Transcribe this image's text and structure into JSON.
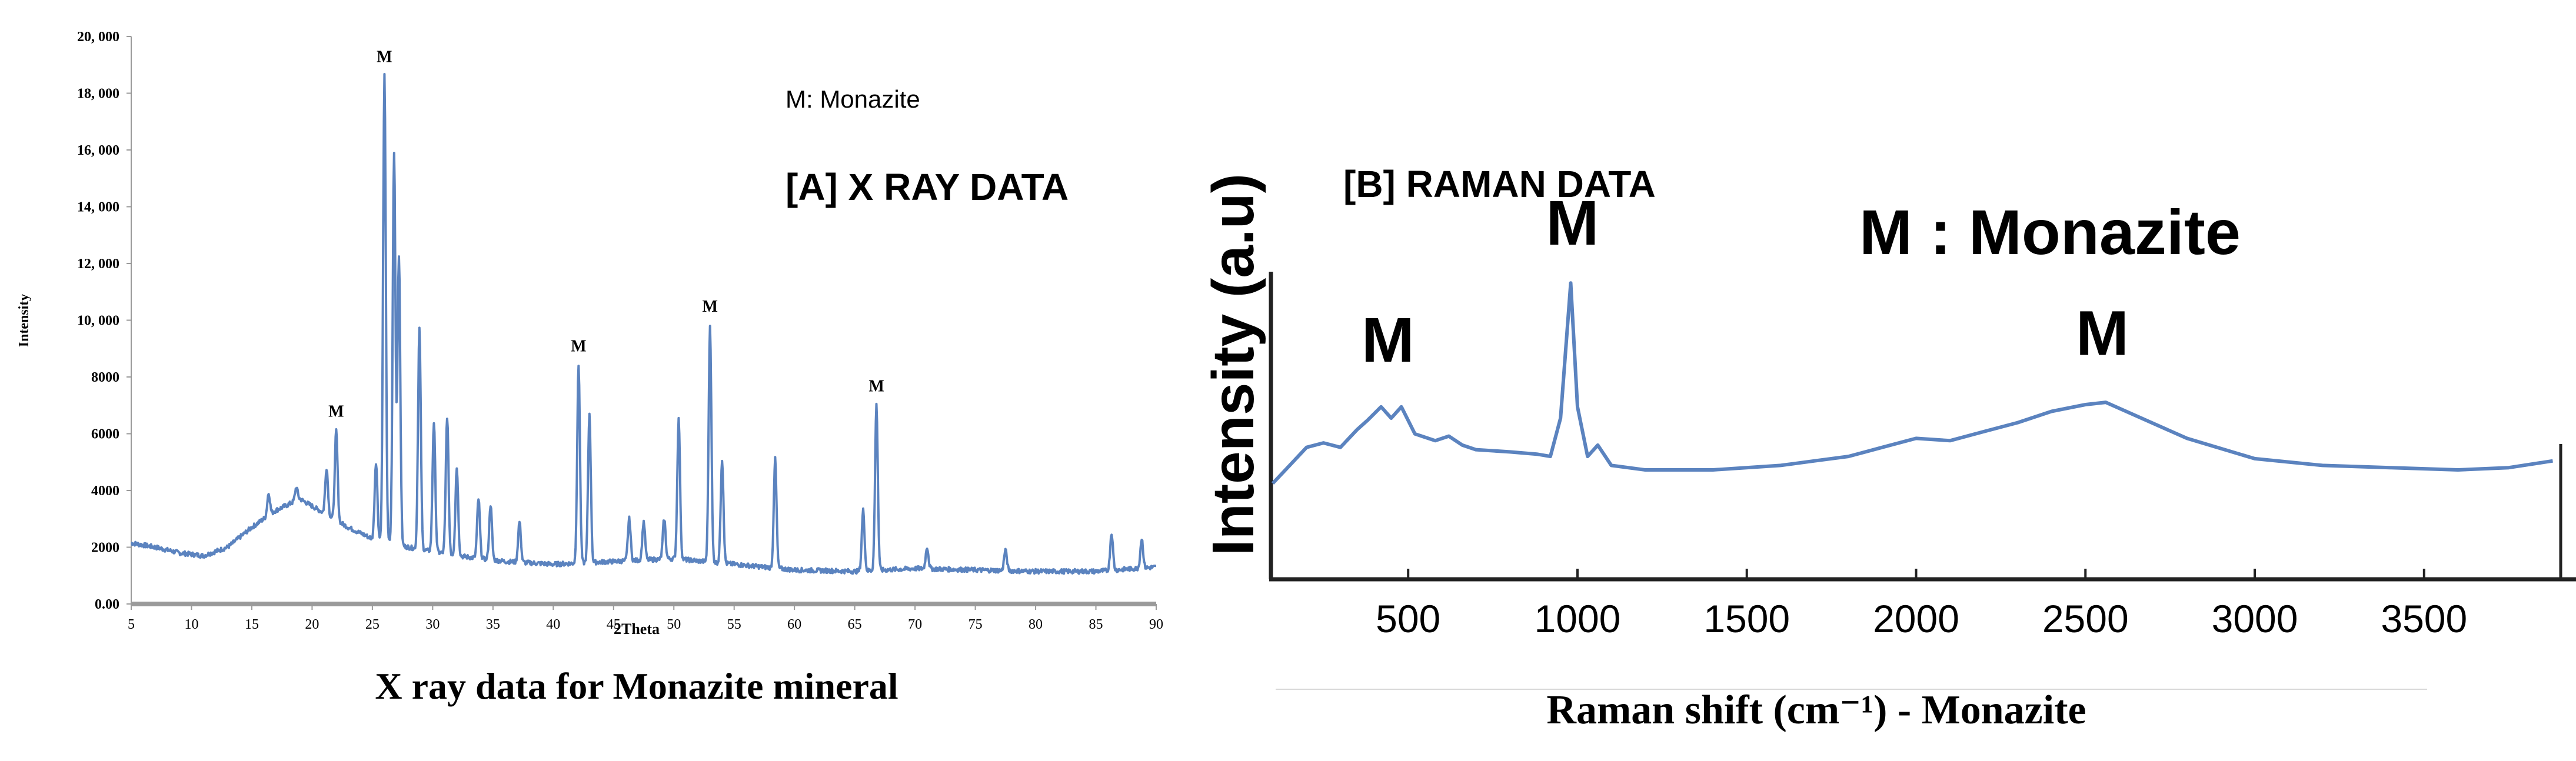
{
  "chart_data": [
    {
      "panel_label": "[A] X RAY DATA",
      "legend_note": "M: Monazite",
      "caption": "X ray data for Monazite mineral",
      "type": "line",
      "xlabel": "2Theta",
      "ylabel": "Intensity",
      "xlim": [
        5,
        90
      ],
      "ylim": [
        0,
        20000
      ],
      "x_ticks": [
        5,
        10,
        15,
        20,
        25,
        30,
        35,
        40,
        45,
        50,
        55,
        60,
        65,
        70,
        75,
        80,
        85,
        90
      ],
      "x_tick_labels": [
        "5",
        "10",
        "15",
        "20",
        "25",
        "30",
        "35",
        "40",
        "45",
        "50",
        "55",
        "60",
        "65",
        "70",
        "75",
        "80",
        "85",
        "90"
      ],
      "y_ticks": [
        0,
        2000,
        4000,
        6000,
        8000,
        10000,
        12000,
        14000,
        16000,
        18000,
        20000
      ],
      "y_tick_labels": [
        "0.00",
        "2000",
        "4000",
        "6000",
        "8000",
        "10, 000",
        "12, 000",
        "14, 000",
        "16, 000",
        "18, 000",
        "20, 000"
      ],
      "line_color": "#5b83bf",
      "baseline": [
        [
          5,
          2150
        ],
        [
          7,
          2000
        ],
        [
          9,
          1800
        ],
        [
          11,
          1700
        ],
        [
          13,
          2000
        ],
        [
          15,
          2700
        ],
        [
          17,
          3300
        ],
        [
          19,
          3700
        ],
        [
          21,
          3200
        ],
        [
          23,
          2700
        ],
        [
          25,
          2300
        ],
        [
          28,
          2000
        ],
        [
          32,
          1700
        ],
        [
          36,
          1500
        ],
        [
          40,
          1400
        ],
        [
          45,
          1500
        ],
        [
          50,
          1600
        ],
        [
          55,
          1400
        ],
        [
          60,
          1200
        ],
        [
          65,
          1150
        ],
        [
          70,
          1250
        ],
        [
          75,
          1200
        ],
        [
          80,
          1150
        ],
        [
          85,
          1150
        ],
        [
          90,
          1300
        ]
      ],
      "peaks": [
        [
          16.4,
          3900
        ],
        [
          18.7,
          4100
        ],
        [
          21.2,
          4800
        ],
        [
          22.0,
          6100
        ],
        [
          25.3,
          5000
        ],
        [
          26.0,
          18600
        ],
        [
          26.8,
          15900
        ],
        [
          27.2,
          12300
        ],
        [
          28.9,
          9700
        ],
        [
          30.1,
          6400
        ],
        [
          31.2,
          6600
        ],
        [
          32.0,
          4800
        ],
        [
          33.8,
          3700
        ],
        [
          34.8,
          3500
        ],
        [
          37.2,
          2900
        ],
        [
          42.1,
          8400
        ],
        [
          43.0,
          6700
        ],
        [
          46.3,
          3000
        ],
        [
          47.5,
          2900
        ],
        [
          49.2,
          3000
        ],
        [
          50.4,
          6500
        ],
        [
          53.0,
          9800
        ],
        [
          54.0,
          5100
        ],
        [
          58.4,
          5100
        ],
        [
          65.7,
          3300
        ],
        [
          66.8,
          7000
        ],
        [
          71.0,
          2000
        ],
        [
          77.5,
          1900
        ],
        [
          86.3,
          2500
        ],
        [
          88.8,
          2300
        ]
      ],
      "annotations": [
        {
          "text": "M",
          "x": 22.0,
          "y": 6100
        },
        {
          "text": "M",
          "x": 26.0,
          "y": 18600
        },
        {
          "text": "M",
          "x": 42.1,
          "y": 8400
        },
        {
          "text": "M",
          "x": 53.0,
          "y": 9800
        },
        {
          "text": "M",
          "x": 66.8,
          "y": 7000
        }
      ]
    },
    {
      "panel_label": "[B] RAMAN DATA",
      "legend_note": "M : Monazite",
      "type": "line",
      "xlabel": "Raman shift (cm⁻¹) - Monazite",
      "ylabel": "Intensity (a.u)",
      "xlim": [
        100,
        3900
      ],
      "ylim": [
        0,
        100
      ],
      "x_ticks": [
        500,
        1000,
        1500,
        2000,
        2500,
        3000,
        3500
      ],
      "x_tick_labels": [
        "500",
        "1000",
        "1500",
        "2000",
        "2500",
        "3000",
        "3500"
      ],
      "line_color": "#5b83bf",
      "points": [
        [
          100,
          6
        ],
        [
          150,
          14
        ],
        [
          200,
          22
        ],
        [
          250,
          24
        ],
        [
          300,
          22
        ],
        [
          350,
          30
        ],
        [
          380,
          34
        ],
        [
          420,
          40
        ],
        [
          450,
          35
        ],
        [
          480,
          40
        ],
        [
          520,
          28
        ],
        [
          580,
          25
        ],
        [
          620,
          27
        ],
        [
          660,
          23
        ],
        [
          700,
          21
        ],
        [
          800,
          20
        ],
        [
          880,
          19
        ],
        [
          920,
          18
        ],
        [
          950,
          35
        ],
        [
          980,
          95
        ],
        [
          1000,
          40
        ],
        [
          1030,
          18
        ],
        [
          1060,
          23
        ],
        [
          1100,
          14
        ],
        [
          1200,
          12
        ],
        [
          1400,
          12
        ],
        [
          1600,
          14
        ],
        [
          1700,
          16
        ],
        [
          1800,
          18
        ],
        [
          1900,
          22
        ],
        [
          2000,
          26
        ],
        [
          2100,
          25
        ],
        [
          2200,
          29
        ],
        [
          2300,
          33
        ],
        [
          2400,
          38
        ],
        [
          2500,
          41
        ],
        [
          2560,
          42
        ],
        [
          2650,
          36
        ],
        [
          2800,
          26
        ],
        [
          3000,
          17
        ],
        [
          3200,
          14
        ],
        [
          3400,
          13
        ],
        [
          3600,
          12
        ],
        [
          3750,
          13
        ],
        [
          3880,
          16
        ]
      ],
      "annotations": [
        {
          "text": "M",
          "x": 440,
          "y": 60
        },
        {
          "text": "M",
          "x": 985,
          "y": 112
        },
        {
          "text": "M",
          "x": 2550,
          "y": 63
        }
      ]
    }
  ]
}
